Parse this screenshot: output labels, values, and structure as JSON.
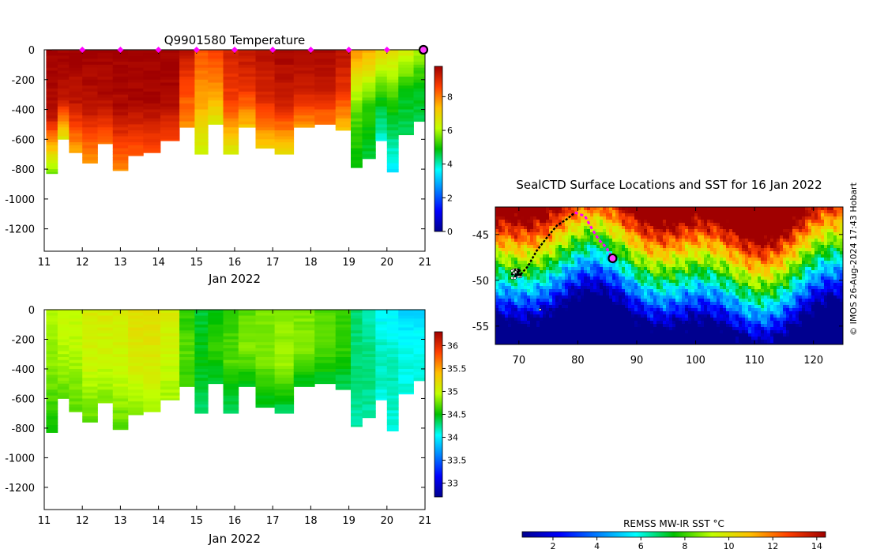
{
  "chart_data": [
    {
      "type": "heatmap",
      "title": "Q9901580  Temperature",
      "xlabel": "Jan 2022",
      "ylabel": "",
      "x_ticks": [
        "11",
        "12",
        "13",
        "14",
        "15",
        "16",
        "17",
        "18",
        "19",
        "20",
        "21"
      ],
      "xlim": [
        11,
        21
      ],
      "y_ticks": [
        "0",
        "-200",
        "-400",
        "-600",
        "-800",
        "-1000",
        "-1200"
      ],
      "ylim": [
        -1350,
        0
      ],
      "colorbar_ticks": [
        "0",
        "2",
        "4",
        "6",
        "8"
      ],
      "colorbar_range": [
        0,
        9.8
      ],
      "surface_markers": [
        12,
        13,
        14,
        15,
        16,
        17,
        18,
        19,
        20
      ],
      "current_position_day": 21,
      "profiles": [
        {
          "day": 11.2,
          "surface": 9.8,
          "mid": 9.6,
          "deep": 5.5,
          "max_depth": 830
        },
        {
          "day": 11.5,
          "surface": 9.8,
          "mid": 9.5,
          "deep": 6.5,
          "max_depth": 600
        },
        {
          "day": 11.8,
          "surface": 9.8,
          "mid": 9.4,
          "deep": 7.5,
          "max_depth": 690
        },
        {
          "day": 12.2,
          "surface": 9.8,
          "mid": 9.5,
          "deep": 7.6,
          "max_depth": 760
        },
        {
          "day": 12.6,
          "surface": 9.8,
          "mid": 9.6,
          "deep": 8.0,
          "max_depth": 630
        },
        {
          "day": 13.0,
          "surface": 9.8,
          "mid": 9.6,
          "deep": 7.8,
          "max_depth": 810
        },
        {
          "day": 13.4,
          "surface": 9.8,
          "mid": 9.7,
          "deep": 8.2,
          "max_depth": 710
        },
        {
          "day": 13.8,
          "surface": 9.8,
          "mid": 9.7,
          "deep": 8.4,
          "max_depth": 690
        },
        {
          "day": 14.3,
          "surface": 9.8,
          "mid": 9.7,
          "deep": 8.6,
          "max_depth": 610
        },
        {
          "day": 14.8,
          "surface": 9.5,
          "mid": 8.5,
          "deep": 7.8,
          "max_depth": 520
        },
        {
          "day": 15.1,
          "surface": 8.4,
          "mid": 7.6,
          "deep": 6.2,
          "max_depth": 700
        },
        {
          "day": 15.5,
          "surface": 8.6,
          "mid": 7.8,
          "deep": 6.5,
          "max_depth": 500
        },
        {
          "day": 15.9,
          "surface": 9.2,
          "mid": 8.6,
          "deep": 6.4,
          "max_depth": 700
        },
        {
          "day": 16.3,
          "surface": 9.4,
          "mid": 8.8,
          "deep": 7.2,
          "max_depth": 520
        },
        {
          "day": 16.8,
          "surface": 9.6,
          "mid": 9.0,
          "deep": 7.0,
          "max_depth": 660
        },
        {
          "day": 17.3,
          "surface": 9.7,
          "mid": 9.2,
          "deep": 6.8,
          "max_depth": 700
        },
        {
          "day": 17.8,
          "surface": 9.7,
          "mid": 9.3,
          "deep": 7.6,
          "max_depth": 520
        },
        {
          "day": 18.4,
          "surface": 9.7,
          "mid": 9.3,
          "deep": 7.9,
          "max_depth": 500
        },
        {
          "day": 18.9,
          "surface": 9.5,
          "mid": 8.8,
          "deep": 7.2,
          "max_depth": 540
        },
        {
          "day": 19.2,
          "surface": 7.8,
          "mid": 5.5,
          "deep": 4.8,
          "max_depth": 790
        },
        {
          "day": 19.5,
          "surface": 7.5,
          "mid": 5.2,
          "deep": 4.6,
          "max_depth": 730
        },
        {
          "day": 19.9,
          "surface": 7.0,
          "mid": 5.0,
          "deep": 3.8,
          "max_depth": 610
        },
        {
          "day": 20.1,
          "surface": 6.8,
          "mid": 4.9,
          "deep": 3.4,
          "max_depth": 820
        },
        {
          "day": 20.5,
          "surface": 6.5,
          "mid": 4.8,
          "deep": 4.5,
          "max_depth": 570
        },
        {
          "day": 20.9,
          "surface": 6.0,
          "mid": 4.8,
          "deep": 4.6,
          "max_depth": 480
        }
      ]
    },
    {
      "type": "heatmap",
      "title": "",
      "xlabel": "Jan 2022",
      "ylabel": "",
      "x_ticks": [
        "11",
        "12",
        "13",
        "14",
        "15",
        "16",
        "17",
        "18",
        "19",
        "20",
        "21"
      ],
      "xlim": [
        11,
        21
      ],
      "y_ticks": [
        "0",
        "-200",
        "-400",
        "-600",
        "-800",
        "-1000",
        "-1200"
      ],
      "ylim": [
        -1350,
        0
      ],
      "colorbar_ticks": [
        "33",
        "33.5",
        "34",
        "34.5",
        "35",
        "35.5",
        "36"
      ],
      "colorbar_range": [
        32.7,
        36.3
      ],
      "profiles": [
        {
          "day": 11.2,
          "surface": 34.9,
          "mid": 34.8,
          "deep": 34.5,
          "max_depth": 830
        },
        {
          "day": 11.5,
          "surface": 35.0,
          "mid": 34.9,
          "deep": 34.7,
          "max_depth": 600
        },
        {
          "day": 11.8,
          "surface": 35.0,
          "mid": 34.9,
          "deep": 34.7,
          "max_depth": 690
        },
        {
          "day": 12.2,
          "surface": 35.1,
          "mid": 35.0,
          "deep": 34.7,
          "max_depth": 760
        },
        {
          "day": 12.6,
          "surface": 35.1,
          "mid": 35.0,
          "deep": 34.8,
          "max_depth": 630
        },
        {
          "day": 13.0,
          "surface": 35.1,
          "mid": 35.0,
          "deep": 34.7,
          "max_depth": 810
        },
        {
          "day": 13.4,
          "surface": 35.2,
          "mid": 35.1,
          "deep": 34.8,
          "max_depth": 710
        },
        {
          "day": 13.8,
          "surface": 35.2,
          "mid": 35.1,
          "deep": 34.9,
          "max_depth": 690
        },
        {
          "day": 14.3,
          "surface": 35.1,
          "mid": 35.0,
          "deep": 34.9,
          "max_depth": 610
        },
        {
          "day": 14.8,
          "surface": 34.6,
          "mid": 34.7,
          "deep": 34.6,
          "max_depth": 520
        },
        {
          "day": 15.1,
          "surface": 34.4,
          "mid": 34.5,
          "deep": 34.3,
          "max_depth": 700
        },
        {
          "day": 15.5,
          "surface": 34.5,
          "mid": 34.6,
          "deep": 34.4,
          "max_depth": 500
        },
        {
          "day": 15.9,
          "surface": 34.6,
          "mid": 34.7,
          "deep": 34.3,
          "max_depth": 700
        },
        {
          "day": 16.3,
          "surface": 34.7,
          "mid": 34.8,
          "deep": 34.4,
          "max_depth": 520
        },
        {
          "day": 16.8,
          "surface": 34.8,
          "mid": 34.8,
          "deep": 34.4,
          "max_depth": 660
        },
        {
          "day": 17.3,
          "surface": 34.8,
          "mid": 34.9,
          "deep": 34.3,
          "max_depth": 700
        },
        {
          "day": 17.8,
          "surface": 34.8,
          "mid": 34.8,
          "deep": 34.4,
          "max_depth": 520
        },
        {
          "day": 18.4,
          "surface": 34.7,
          "mid": 34.7,
          "deep": 34.4,
          "max_depth": 500
        },
        {
          "day": 18.9,
          "surface": 34.6,
          "mid": 34.6,
          "deep": 34.3,
          "max_depth": 540
        },
        {
          "day": 19.2,
          "surface": 34.3,
          "mid": 34.3,
          "deep": 34.2,
          "max_depth": 790
        },
        {
          "day": 19.5,
          "surface": 34.2,
          "mid": 34.3,
          "deep": 34.2,
          "max_depth": 730
        },
        {
          "day": 19.9,
          "surface": 34.0,
          "mid": 34.2,
          "deep": 34.1,
          "max_depth": 610
        },
        {
          "day": 20.1,
          "surface": 34.0,
          "mid": 34.2,
          "deep": 34.1,
          "max_depth": 820
        },
        {
          "day": 20.5,
          "surface": 33.9,
          "mid": 34.1,
          "deep": 34.1,
          "max_depth": 570
        },
        {
          "day": 20.9,
          "surface": 33.9,
          "mid": 34.1,
          "deep": 34.1,
          "max_depth": 480
        }
      ]
    },
    {
      "type": "heatmap",
      "title": "SealCTD Surface Locations and SST for 16 Jan 2022",
      "xlabel": "",
      "ylabel": "",
      "x_ticks": [
        "70",
        "80",
        "90",
        "100",
        "110",
        "120"
      ],
      "xlim": [
        66,
        125
      ],
      "y_ticks": [
        "-45",
        "-50",
        "-55"
      ],
      "ylim": [
        -57,
        -42
      ],
      "colorbar_label": "REMSS MW-IR SST °C",
      "colorbar_ticks": [
        "2",
        "4",
        "6",
        "8",
        "10",
        "12",
        "14"
      ],
      "colorbar_range": [
        0.6,
        14.4
      ],
      "track_black": [
        [
          69.2,
          -49.2
        ],
        [
          70.1,
          -49.5
        ],
        [
          71.5,
          -48.5
        ],
        [
          73.0,
          -46.8
        ],
        [
          74.8,
          -45.3
        ],
        [
          76.5,
          -44.0
        ],
        [
          78.2,
          -43.3
        ],
        [
          79.5,
          -42.6
        ]
      ],
      "track_magenta": [
        [
          79.5,
          -42.6
        ],
        [
          81.2,
          -43.0
        ],
        [
          82.5,
          -44.5
        ],
        [
          83.6,
          -45.6
        ],
        [
          84.8,
          -46.4
        ],
        [
          85.9,
          -47.6
        ]
      ],
      "current_position": [
        85.9,
        -47.6
      ],
      "isolated_point": [
        73.6,
        -53.2
      ]
    }
  ],
  "credit": "© IMOS 26-Aug-2024 17:43 Hobart",
  "colors": {
    "marker_magenta": "#ff00ff",
    "current_fill": "#ff40ff",
    "axis": "#000000"
  }
}
